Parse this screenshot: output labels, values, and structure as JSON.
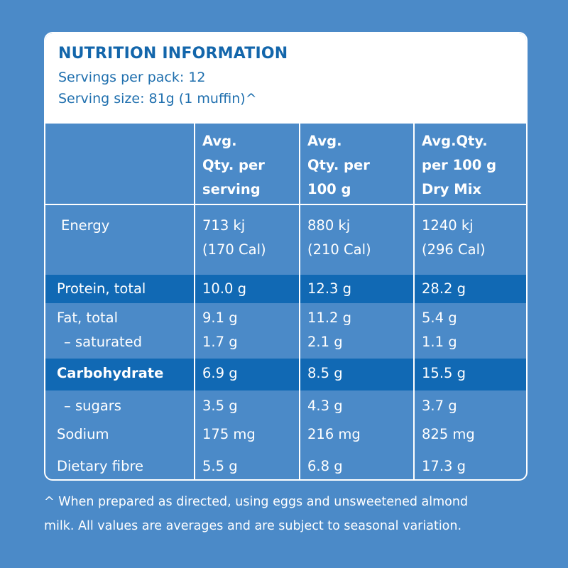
{
  "header": {
    "title": "NUTRITION INFORMATION",
    "servings_per_pack": "Servings per pack: 12",
    "serving_size": "Serving size: 81g (1 muffin)^"
  },
  "table": {
    "columns": [
      "",
      "Avg. Qty. per serving",
      "Avg. Qty. per 100 g",
      "Avg.Qty. per 100 g Dry Mix"
    ],
    "column_lines": [
      [
        "Avg.",
        "Qty. per",
        "serving"
      ],
      [
        "Avg.",
        "Qty. per",
        "100 g"
      ],
      [
        "Avg.Qty.",
        "per 100 g",
        "Dry Mix"
      ]
    ],
    "rows": [
      {
        "label": "Energy",
        "values": [
          [
            "713 kj",
            "(170 Cal)"
          ],
          [
            "880 kj",
            "(210 Cal)"
          ],
          [
            "1240 kj",
            "(296 Cal)"
          ]
        ]
      },
      {
        "label": "Protein, total",
        "values": [
          "10.0 g",
          "12.3 g",
          "28.2 g"
        ],
        "highlight": true
      },
      {
        "label": "Fat, total",
        "values": [
          "9.1 g",
          "11.2 g",
          "5.4 g"
        ]
      },
      {
        "label": "–  saturated",
        "values": [
          "1.7 g",
          "2.1 g",
          "1.1 g"
        ]
      },
      {
        "label": "Carbohydrate",
        "values": [
          "6.9 g",
          "8.5 g",
          "15.5 g"
        ],
        "highlight": true
      },
      {
        "label": "–  sugars",
        "values": [
          "3.5 g",
          "4.3 g",
          "3.7 g"
        ]
      },
      {
        "label": "Sodium",
        "values": [
          "175 mg",
          "216 mg",
          "825 mg"
        ]
      },
      {
        "label": "Dietary fibre",
        "values": [
          "5.5 g",
          "6.8 g",
          "17.3 g"
        ]
      }
    ]
  },
  "footnote": [
    "^ When prepared as directed, using eggs and unsweetened almond",
    "milk. All values are averages and are subject to seasonal variation."
  ],
  "colors": {
    "background": "#4b8ac8",
    "highlight_row": "#1169b4",
    "title": "#1366ab"
  }
}
